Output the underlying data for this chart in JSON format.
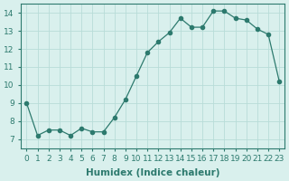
{
  "x": [
    0,
    1,
    2,
    3,
    4,
    5,
    6,
    7,
    8,
    9,
    10,
    11,
    12,
    13,
    14,
    15,
    16,
    17,
    18,
    19,
    20,
    21,
    22,
    23
  ],
  "y": [
    9.0,
    7.2,
    7.5,
    7.5,
    7.2,
    7.6,
    7.4,
    7.4,
    8.2,
    9.2,
    10.5,
    11.8,
    12.4,
    12.9,
    13.7,
    13.2,
    13.2,
    14.1,
    14.1,
    13.7,
    13.6,
    13.1,
    12.8,
    10.2
  ],
  "line_color": "#2d7a6e",
  "marker": "o",
  "marker_size": 3,
  "bg_color": "#d9f0ed",
  "grid_color": "#b8dcd8",
  "xlabel": "Humidex (Indice chaleur)",
  "ylabel": "",
  "title": "",
  "xlim": [
    -0.5,
    23.5
  ],
  "ylim": [
    6.5,
    14.5
  ],
  "yticks": [
    7,
    8,
    9,
    10,
    11,
    12,
    13,
    14
  ],
  "xticks": [
    0,
    1,
    2,
    3,
    4,
    5,
    6,
    7,
    8,
    9,
    10,
    11,
    12,
    13,
    14,
    15,
    16,
    17,
    18,
    19,
    20,
    21,
    22,
    23
  ],
  "tick_label_fontsize": 6.5,
  "xlabel_fontsize": 7.5
}
